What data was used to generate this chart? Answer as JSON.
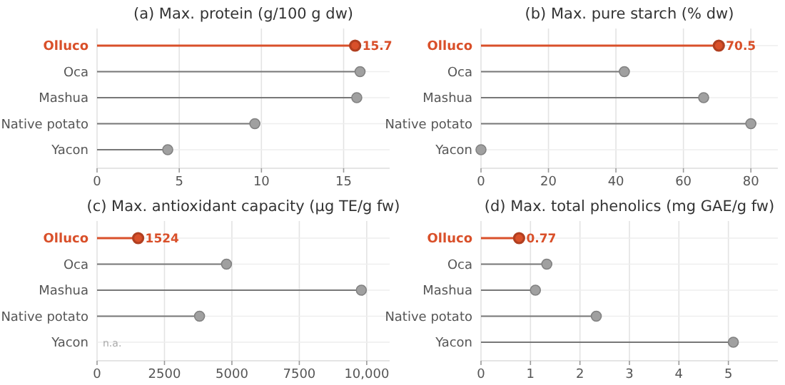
{
  "chart_data": [
    {
      "type": "lollipop",
      "orientation": "horizontal",
      "title": "(a)  Max. protein (g/100 g dw)",
      "categories": [
        "Olluco",
        "Oca",
        "Mashua",
        "Native potato",
        "Yacon"
      ],
      "values": [
        15.7,
        16.0,
        15.8,
        9.6,
        4.3
      ],
      "colors": [
        "#d9502a",
        "#a0a0a0",
        "#a0a0a0",
        "#a0a0a0",
        "#a0a0a0"
      ],
      "value_labels": [
        "15.7",
        null,
        null,
        null,
        null
      ],
      "xlim": [
        0,
        17.8
      ],
      "xticks": [
        0,
        5,
        10,
        15
      ],
      "grid": true
    },
    {
      "type": "lollipop",
      "orientation": "horizontal",
      "title": "(b)  Max. pure starch (% dw)",
      "categories": [
        "Olluco",
        "Oca",
        "Mashua",
        "Native potato",
        "Yacon"
      ],
      "values": [
        70.5,
        42.5,
        66,
        80,
        0
      ],
      "colors": [
        "#d9502a",
        "#a0a0a0",
        "#a0a0a0",
        "#a0a0a0",
        "#a0a0a0"
      ],
      "value_labels": [
        "70.5",
        null,
        null,
        null,
        null
      ],
      "xlim": [
        0,
        88
      ],
      "xticks": [
        0,
        20,
        40,
        60,
        80
      ],
      "grid": true
    },
    {
      "type": "lollipop",
      "orientation": "horizontal",
      "title": "(c)  Max. antioxidant capacity (μg TE/g fw)",
      "categories": [
        "Olluco",
        "Oca",
        "Mashua",
        "Native potato",
        "Yacon"
      ],
      "values": [
        1524,
        4800,
        9800,
        3800,
        null
      ],
      "colors": [
        "#d9502a",
        "#a0a0a0",
        "#a0a0a0",
        "#a0a0a0",
        null
      ],
      "value_labels": [
        "1524",
        null,
        null,
        null,
        null
      ],
      "xlim": [
        0,
        10850
      ],
      "xticks": [
        0,
        2500,
        5000,
        7500,
        {
          "value": 10000,
          "label": "10,000"
        }
      ],
      "grid": true,
      "annotations": [
        "n.a."
      ]
    },
    {
      "type": "lollipop",
      "orientation": "horizontal",
      "title": "(d)  Max. total phenolics (mg GAE/g fw)",
      "categories": [
        "Olluco",
        "Oca",
        "Mashua",
        "Native potato",
        "Yacon"
      ],
      "values": [
        0.77,
        1.33,
        1.1,
        2.33,
        5.1
      ],
      "colors": [
        "#d9502a",
        "#a0a0a0",
        "#a0a0a0",
        "#a0a0a0",
        "#a0a0a0"
      ],
      "value_labels": [
        "0.77",
        null,
        null,
        null,
        null
      ],
      "xlim": [
        0,
        6
      ],
      "xticks": [
        0,
        1,
        2,
        3,
        4,
        5
      ],
      "grid": true
    }
  ]
}
